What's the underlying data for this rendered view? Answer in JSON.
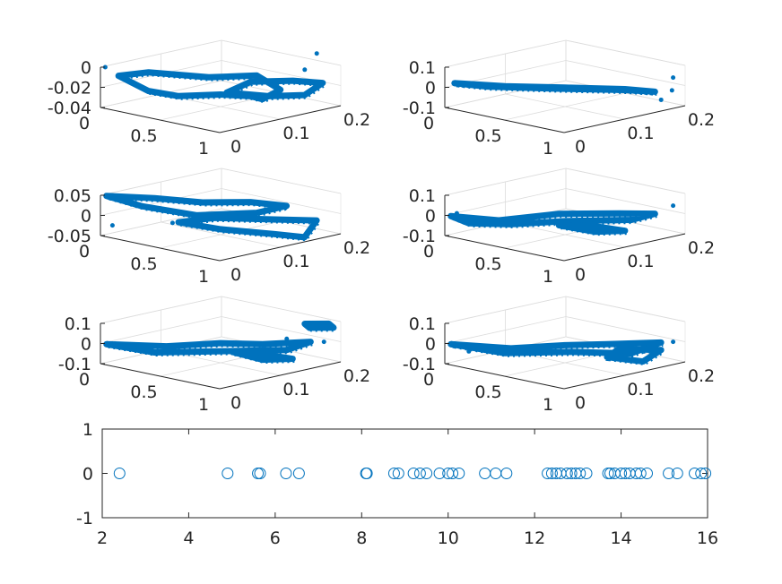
{
  "figure": {
    "marker_color": "#0072bd",
    "background": "#ffffff"
  },
  "chart_data": [
    {
      "type": "scatter",
      "subtype": "3d",
      "position": "row-1-left",
      "x": [
        0,
        0.2
      ],
      "y": [
        0,
        1
      ],
      "z": [
        -0.04,
        0
      ],
      "x_tick_labels": [
        "0",
        "0.1",
        "0.2"
      ],
      "y_tick_labels": [
        "0",
        "0.5",
        "1"
      ],
      "z_tick_labels": [
        "-0.04",
        "-0.02",
        "0"
      ],
      "grid": true
    },
    {
      "type": "scatter",
      "subtype": "3d",
      "position": "row-1-right",
      "x": [
        0,
        0.2
      ],
      "y": [
        0,
        1
      ],
      "z": [
        -0.1,
        0.1
      ],
      "x_tick_labels": [
        "0",
        "0.1",
        "0.2"
      ],
      "y_tick_labels": [
        "0",
        "0.5",
        "1"
      ],
      "z_tick_labels": [
        "-0.1",
        "0",
        "0.1"
      ],
      "grid": true
    },
    {
      "type": "scatter",
      "subtype": "3d",
      "position": "row-2-left",
      "x": [
        0,
        0.2
      ],
      "y": [
        0,
        1
      ],
      "z": [
        -0.05,
        0.05
      ],
      "x_tick_labels": [
        "0",
        "0.1",
        "0.2"
      ],
      "y_tick_labels": [
        "0",
        "0.5",
        "1"
      ],
      "z_tick_labels": [
        "-0.05",
        "0",
        "0.05"
      ],
      "grid": true
    },
    {
      "type": "scatter",
      "subtype": "3d",
      "position": "row-2-right",
      "x": [
        0,
        0.2
      ],
      "y": [
        0,
        1
      ],
      "z": [
        -0.1,
        0.1
      ],
      "x_tick_labels": [
        "0",
        "0.1",
        "0.2"
      ],
      "y_tick_labels": [
        "0",
        "0.5",
        "1"
      ],
      "z_tick_labels": [
        "-0.1",
        "0",
        "0.1"
      ],
      "grid": true
    },
    {
      "type": "scatter",
      "subtype": "3d",
      "position": "row-3-left",
      "x": [
        0,
        0.2
      ],
      "y": [
        0,
        1
      ],
      "z": [
        -0.1,
        0.1
      ],
      "x_tick_labels": [
        "0",
        "0.1",
        "0.2"
      ],
      "y_tick_labels": [
        "0",
        "0.5",
        "1"
      ],
      "z_tick_labels": [
        "-0.1",
        "0",
        "0.1"
      ],
      "grid": true
    },
    {
      "type": "scatter",
      "subtype": "3d",
      "position": "row-3-right",
      "x": [
        0,
        0.2
      ],
      "y": [
        0,
        1
      ],
      "z": [
        -0.1,
        0.1
      ],
      "x_tick_labels": [
        "0",
        "0.1",
        "0.2"
      ],
      "y_tick_labels": [
        "0",
        "0.5",
        "1"
      ],
      "z_tick_labels": [
        "-0.1",
        "0",
        "0.1"
      ],
      "grid": true
    },
    {
      "type": "scatter",
      "subtype": "1d-markers",
      "position": "bottom",
      "marker": "open-circle",
      "xlim": [
        2,
        16
      ],
      "ylim": [
        -1,
        1
      ],
      "x_ticks": [
        2,
        4,
        6,
        8,
        10,
        12,
        14,
        16
      ],
      "y_ticks": [
        -1,
        0,
        1
      ],
      "x": [
        2.4,
        4.9,
        5.6,
        5.65,
        6.25,
        6.55,
        8.1,
        8.12,
        8.75,
        8.85,
        9.2,
        9.35,
        9.5,
        9.8,
        10.0,
        10.1,
        10.25,
        10.85,
        11.1,
        11.35,
        12.3,
        12.4,
        12.5,
        12.6,
        12.75,
        12.85,
        12.95,
        13.05,
        13.2,
        13.7,
        13.75,
        13.85,
        14.0,
        14.1,
        14.2,
        14.35,
        14.45,
        14.6,
        15.1,
        15.3,
        15.7,
        15.85,
        15.95
      ],
      "y": 0,
      "grid": false
    }
  ]
}
